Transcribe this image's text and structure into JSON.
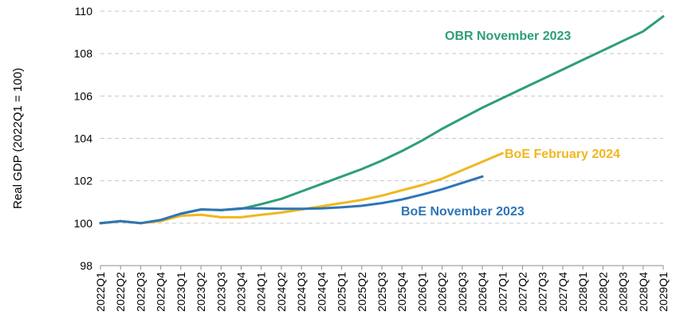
{
  "chart_data": {
    "type": "line",
    "ylabel": "Real GDP (2022Q1 = 100)",
    "xlabel": "",
    "ylim": [
      98,
      110
    ],
    "y_ticks": [
      98,
      100,
      102,
      104,
      106,
      108,
      110
    ],
    "grid": "horizontal dashed",
    "categories": [
      "2022Q1",
      "2022Q2",
      "2022Q3",
      "2022Q4",
      "2023Q1",
      "2023Q2",
      "2023Q3",
      "2023Q4",
      "2024Q1",
      "2024Q2",
      "2024Q3",
      "2024Q4",
      "2025Q1",
      "2025Q2",
      "2025Q3",
      "2025Q4",
      "2026Q1",
      "2026Q2",
      "2026Q3",
      "2026Q4",
      "2027Q1",
      "2027Q2",
      "2027Q3",
      "2027Q4",
      "2028Q1",
      "2028Q2",
      "2028Q3",
      "2028Q4",
      "2029Q1"
    ],
    "series": [
      {
        "name": "OBR November 2023",
        "color": "#2e9e78",
        "values": [
          100.0,
          100.1,
          100.0,
          100.15,
          100.45,
          100.65,
          100.62,
          100.68,
          100.9,
          101.15,
          101.5,
          101.85,
          102.2,
          102.55,
          102.95,
          103.4,
          103.9,
          104.45,
          104.95,
          105.45,
          105.9,
          106.35,
          106.8,
          107.25,
          107.7,
          108.15,
          108.6,
          109.05,
          109.75
        ]
      },
      {
        "name": "BoE February 2024",
        "color": "#f0b71f",
        "values": [
          100.0,
          100.1,
          100.0,
          100.1,
          100.35,
          100.4,
          100.28,
          100.28,
          100.4,
          100.5,
          100.65,
          100.8,
          100.95,
          101.1,
          101.3,
          101.55,
          101.8,
          102.1,
          102.5,
          102.9,
          103.3,
          null,
          null,
          null,
          null,
          null,
          null,
          null,
          null
        ]
      },
      {
        "name": "BoE November 2023",
        "color": "#2e75b6",
        "values": [
          100.0,
          100.1,
          100.0,
          100.15,
          100.45,
          100.65,
          100.62,
          100.7,
          100.7,
          100.68,
          100.68,
          100.7,
          100.75,
          100.82,
          100.95,
          101.12,
          101.35,
          101.6,
          101.9,
          102.2,
          null,
          null,
          null,
          null,
          null,
          null,
          null,
          null,
          null
        ]
      }
    ],
    "annotations": [
      "OBR November 2023",
      "BoE February 2024",
      "BoE November 2023"
    ]
  }
}
